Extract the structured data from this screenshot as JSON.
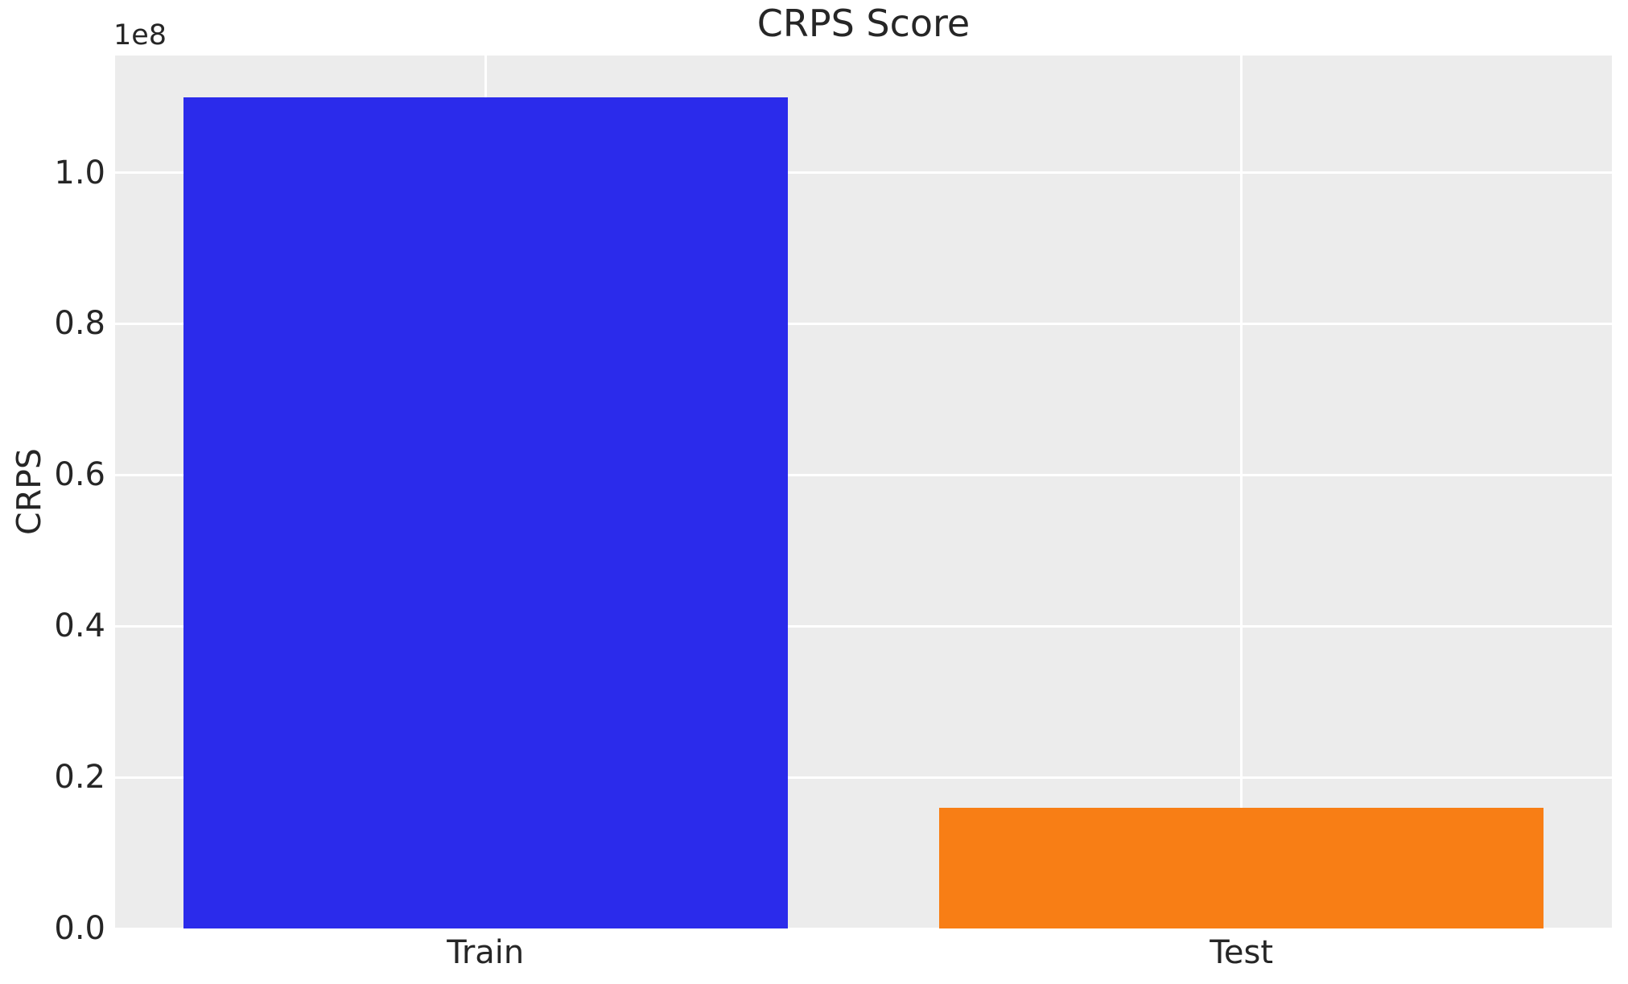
{
  "figure": {
    "background": "#ffffff",
    "plot_background": "#ececec",
    "grid_color": "#ffffff",
    "text_color": "#262626",
    "offset_text": "1e8"
  },
  "chart_data": {
    "type": "bar",
    "title": "CRPS Score",
    "xlabel": "",
    "ylabel": "CRPS",
    "categories": [
      "Train",
      "Test"
    ],
    "values": [
      110000000,
      16000000
    ],
    "bar_colors": [
      "#2b2beb",
      "#f87e15"
    ],
    "bar_width_fraction": 0.8,
    "ylim": [
      0,
      115500000
    ],
    "xlim": [
      -0.49,
      1.49
    ],
    "ytick_values": [
      0,
      20000000,
      40000000,
      60000000,
      80000000,
      100000000
    ],
    "ytick_labels": [
      "0.0",
      "0.2",
      "0.4",
      "0.6",
      "0.8",
      "1.0"
    ],
    "y_offset_multiplier": "1e8",
    "grid": true,
    "legend_position": "none"
  }
}
